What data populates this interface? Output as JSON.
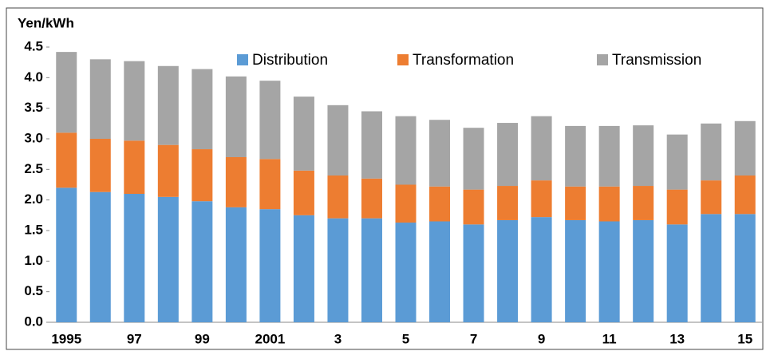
{
  "chart_data": {
    "type": "stacked-bar",
    "y_label": "Yen/kWh",
    "categories": [
      "1995",
      null,
      "97",
      null,
      "99",
      null,
      "2001",
      null,
      "3",
      null,
      "5",
      null,
      "7",
      null,
      "9",
      null,
      "11",
      null,
      "13",
      null,
      "15"
    ],
    "series": [
      {
        "name": "Distribution",
        "color": "#5b9bd5",
        "values": [
          2.2,
          2.13,
          2.1,
          2.05,
          1.98,
          1.88,
          1.85,
          1.75,
          1.7,
          1.7,
          1.63,
          1.65,
          1.6,
          1.67,
          1.72,
          1.67,
          1.65,
          1.67,
          1.6,
          1.77,
          1.77
        ]
      },
      {
        "name": "Transformation",
        "color": "#ed7d31",
        "values": [
          0.9,
          0.87,
          0.87,
          0.85,
          0.85,
          0.82,
          0.82,
          0.73,
          0.7,
          0.65,
          0.62,
          0.57,
          0.57,
          0.56,
          0.6,
          0.55,
          0.57,
          0.56,
          0.57,
          0.55,
          0.63
        ]
      },
      {
        "name": "Transmission",
        "color": "#a5a5a5",
        "values": [
          1.32,
          1.3,
          1.3,
          1.29,
          1.31,
          1.32,
          1.28,
          1.21,
          1.15,
          1.1,
          1.12,
          1.09,
          1.01,
          1.03,
          1.05,
          0.99,
          0.99,
          0.99,
          0.9,
          0.93,
          0.89
        ]
      }
    ],
    "ylim": [
      0,
      4.5
    ],
    "yticks": [
      {
        "value": 0,
        "label": "0.0"
      },
      0.5,
      {
        "value": 1,
        "label": "1.0"
      },
      1.5,
      {
        "value": 2,
        "label": "2.0"
      },
      2.5,
      {
        "value": 3,
        "label": "3.0"
      },
      3.5,
      {
        "value": 4,
        "label": "4.0"
      },
      4.5
    ],
    "legend": "top"
  }
}
